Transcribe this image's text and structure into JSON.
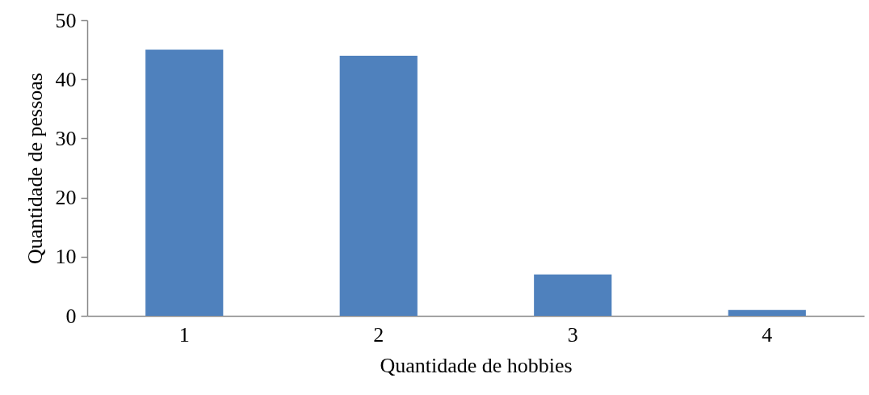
{
  "chart_data": {
    "type": "bar",
    "xlabel": "Quantidade de hobbies",
    "ylabel": "Quantidade de pessoas",
    "categories": [
      "1",
      "2",
      "3",
      "4"
    ],
    "values": [
      45,
      44,
      7,
      1
    ],
    "color": "#4f81bd",
    "ylim": [
      0,
      50
    ],
    "yticks": [
      0,
      10,
      20,
      30,
      40,
      50
    ],
    "grid": false
  }
}
